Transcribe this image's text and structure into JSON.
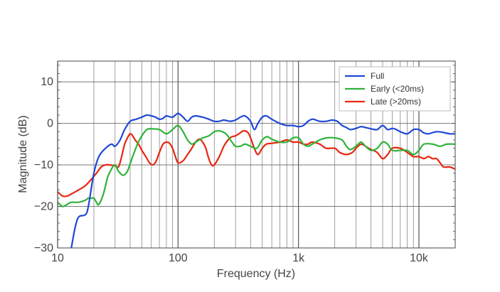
{
  "chart_data": {
    "type": "line",
    "title": "",
    "xlabel": "Frequency (Hz)",
    "ylabel": "Magnitude (dB)",
    "xscale": "log",
    "xlim": [
      10,
      20000
    ],
    "ylim": [
      -30,
      15
    ],
    "x_ticks": [
      10,
      100,
      1000,
      10000
    ],
    "x_tick_labels": [
      "10",
      "100",
      "1k",
      "10k"
    ],
    "y_ticks": [
      -30,
      -20,
      -10,
      0,
      10
    ],
    "y_tick_labels": [
      "−30",
      "−20",
      "−10",
      "0",
      "10"
    ],
    "grid": true,
    "legend_position": "top-right",
    "series": [
      {
        "name": "Full",
        "color": "#1f48d6",
        "points": [
          [
            13,
            -30
          ],
          [
            14,
            -25
          ],
          [
            15,
            -22.5
          ],
          [
            17,
            -22
          ],
          [
            18,
            -20
          ],
          [
            20,
            -12
          ],
          [
            22,
            -8
          ],
          [
            25,
            -6
          ],
          [
            28,
            -5
          ],
          [
            30,
            -5.5
          ],
          [
            33,
            -4
          ],
          [
            36,
            -1.5
          ],
          [
            40,
            0.5
          ],
          [
            45,
            1
          ],
          [
            50,
            1.5
          ],
          [
            55,
            2
          ],
          [
            60,
            1.8
          ],
          [
            65,
            1.5
          ],
          [
            70,
            1
          ],
          [
            75,
            1.2
          ],
          [
            80,
            1.8
          ],
          [
            90,
            1.5
          ],
          [
            100,
            2.4
          ],
          [
            110,
            1.5
          ],
          [
            120,
            0.5
          ],
          [
            130,
            1.5
          ],
          [
            140,
            1.8
          ],
          [
            160,
            1.5
          ],
          [
            180,
            1
          ],
          [
            200,
            0.5
          ],
          [
            220,
            0.5
          ],
          [
            240,
            0.8
          ],
          [
            270,
            0.5
          ],
          [
            300,
            0.8
          ],
          [
            330,
            1.5
          ],
          [
            360,
            1.8
          ],
          [
            400,
            0.5
          ],
          [
            430,
            -1.5
          ],
          [
            460,
            0
          ],
          [
            500,
            1.5
          ],
          [
            540,
            1.8
          ],
          [
            600,
            1
          ],
          [
            700,
            0
          ],
          [
            800,
            -0.5
          ],
          [
            900,
            -0.5
          ],
          [
            1000,
            -0.8
          ],
          [
            1100,
            -0.5
          ],
          [
            1200,
            0.5
          ],
          [
            1300,
            1
          ],
          [
            1400,
            0.8
          ],
          [
            1500,
            0.5
          ],
          [
            1700,
            0.5
          ],
          [
            1900,
            0.8
          ],
          [
            2100,
            0.5
          ],
          [
            2300,
            -0.5
          ],
          [
            2500,
            -1
          ],
          [
            2700,
            -1.5
          ],
          [
            3000,
            -1.2
          ],
          [
            3300,
            -0.8
          ],
          [
            3600,
            -1
          ],
          [
            4000,
            -1.3
          ],
          [
            4500,
            -1.5
          ],
          [
            5000,
            -0.5
          ],
          [
            5500,
            -1.5
          ],
          [
            6000,
            -1.2
          ],
          [
            6500,
            -1.5
          ],
          [
            7000,
            -2
          ],
          [
            8000,
            -2.5
          ],
          [
            9000,
            -1.5
          ],
          [
            10000,
            -1.5
          ],
          [
            11000,
            -2.3
          ],
          [
            12000,
            -2.5
          ],
          [
            14000,
            -2
          ],
          [
            16000,
            -2.2
          ],
          [
            18000,
            -2.5
          ],
          [
            20000,
            -2.5
          ]
        ]
      },
      {
        "name": "Early (<20ms)",
        "color": "#2eb33a",
        "points": [
          [
            10,
            -19
          ],
          [
            11,
            -20
          ],
          [
            12,
            -19.5
          ],
          [
            13,
            -19
          ],
          [
            15,
            -19
          ],
          [
            17,
            -18.5
          ],
          [
            18,
            -18
          ],
          [
            19,
            -18
          ],
          [
            20,
            -18
          ],
          [
            21,
            -19
          ],
          [
            22,
            -19.5
          ],
          [
            24,
            -17
          ],
          [
            26,
            -13
          ],
          [
            28,
            -11
          ],
          [
            30,
            -10
          ],
          [
            32,
            -11.5
          ],
          [
            35,
            -12.5
          ],
          [
            38,
            -11.5
          ],
          [
            42,
            -8
          ],
          [
            46,
            -5
          ],
          [
            50,
            -3
          ],
          [
            55,
            -1.5
          ],
          [
            60,
            -1.3
          ],
          [
            70,
            -1.5
          ],
          [
            80,
            -2.5
          ],
          [
            90,
            -1.5
          ],
          [
            100,
            -0.5
          ],
          [
            110,
            -2
          ],
          [
            120,
            -4
          ],
          [
            130,
            -5
          ],
          [
            140,
            -4.5
          ],
          [
            160,
            -3.5
          ],
          [
            180,
            -3
          ],
          [
            200,
            -2
          ],
          [
            220,
            -1.8
          ],
          [
            250,
            -2.5
          ],
          [
            280,
            -4.5
          ],
          [
            300,
            -5.5
          ],
          [
            330,
            -5.5
          ],
          [
            360,
            -5
          ],
          [
            400,
            -5.5
          ],
          [
            450,
            -6
          ],
          [
            500,
            -4
          ],
          [
            550,
            -3.2
          ],
          [
            600,
            -3.8
          ],
          [
            700,
            -4.5
          ],
          [
            800,
            -4.5
          ],
          [
            900,
            -3.5
          ],
          [
            1000,
            -3.5
          ],
          [
            1100,
            -5
          ],
          [
            1200,
            -5.5
          ],
          [
            1300,
            -5
          ],
          [
            1500,
            -4
          ],
          [
            1700,
            -3.5
          ],
          [
            2000,
            -3.5
          ],
          [
            2300,
            -4
          ],
          [
            2500,
            -5.5
          ],
          [
            2700,
            -6.3
          ],
          [
            3000,
            -5.5
          ],
          [
            3300,
            -4.5
          ],
          [
            3600,
            -5.5
          ],
          [
            4000,
            -6.5
          ],
          [
            4500,
            -6
          ],
          [
            5000,
            -4.5
          ],
          [
            5500,
            -5
          ],
          [
            6000,
            -6.5
          ],
          [
            7000,
            -6.5
          ],
          [
            8000,
            -6.5
          ],
          [
            9000,
            -7.5
          ],
          [
            10000,
            -6.5
          ],
          [
            11000,
            -5
          ],
          [
            13000,
            -5
          ],
          [
            15000,
            -5.5
          ],
          [
            17000,
            -5
          ],
          [
            20000,
            -5
          ]
        ]
      },
      {
        "name": "Late (>20ms)",
        "color": "#e8260f",
        "points": [
          [
            10,
            -16.5
          ],
          [
            11,
            -17.5
          ],
          [
            12,
            -17.5
          ],
          [
            13,
            -17
          ],
          [
            15,
            -16
          ],
          [
            17,
            -15
          ],
          [
            19,
            -13.5
          ],
          [
            21,
            -12
          ],
          [
            23,
            -10.5
          ],
          [
            25,
            -10
          ],
          [
            27,
            -10
          ],
          [
            30,
            -10.2
          ],
          [
            32,
            -10.5
          ],
          [
            34,
            -8
          ],
          [
            36,
            -5
          ],
          [
            38,
            -3.5
          ],
          [
            40,
            -2.5
          ],
          [
            42,
            -3
          ],
          [
            44,
            -4
          ],
          [
            47,
            -5
          ],
          [
            50,
            -6.5
          ],
          [
            54,
            -8
          ],
          [
            58,
            -9.5
          ],
          [
            62,
            -10
          ],
          [
            66,
            -9
          ],
          [
            70,
            -7
          ],
          [
            75,
            -5
          ],
          [
            80,
            -4.5
          ],
          [
            85,
            -4.8
          ],
          [
            90,
            -6
          ],
          [
            95,
            -8
          ],
          [
            100,
            -9.5
          ],
          [
            110,
            -9
          ],
          [
            120,
            -7.5
          ],
          [
            130,
            -6
          ],
          [
            140,
            -4.5
          ],
          [
            150,
            -3.8
          ],
          [
            160,
            -4.5
          ],
          [
            170,
            -6
          ],
          [
            180,
            -8.5
          ],
          [
            190,
            -10
          ],
          [
            200,
            -10
          ],
          [
            220,
            -8
          ],
          [
            240,
            -5.5
          ],
          [
            260,
            -4
          ],
          [
            280,
            -3.2
          ],
          [
            300,
            -3
          ],
          [
            320,
            -2.5
          ],
          [
            350,
            -1.8
          ],
          [
            380,
            -2.2
          ],
          [
            400,
            -3.5
          ],
          [
            430,
            -6
          ],
          [
            460,
            -7.5
          ],
          [
            500,
            -6
          ],
          [
            540,
            -5
          ],
          [
            600,
            -4.8
          ],
          [
            700,
            -4.5
          ],
          [
            800,
            -4
          ],
          [
            900,
            -4.5
          ],
          [
            1000,
            -4.5
          ],
          [
            1100,
            -5
          ],
          [
            1200,
            -5
          ],
          [
            1300,
            -4.5
          ],
          [
            1500,
            -5
          ],
          [
            1700,
            -6
          ],
          [
            2000,
            -6
          ],
          [
            2200,
            -7
          ],
          [
            2500,
            -7.5
          ],
          [
            2800,
            -7
          ],
          [
            3000,
            -6
          ],
          [
            3300,
            -5
          ],
          [
            3600,
            -5.5
          ],
          [
            4000,
            -6.3
          ],
          [
            4500,
            -7
          ],
          [
            5000,
            -8.5
          ],
          [
            5500,
            -7.5
          ],
          [
            6000,
            -6
          ],
          [
            7000,
            -6
          ],
          [
            8000,
            -7
          ],
          [
            9000,
            -8
          ],
          [
            10000,
            -8
          ],
          [
            11000,
            -8.5
          ],
          [
            12000,
            -8
          ],
          [
            13000,
            -8.5
          ],
          [
            14000,
            -8.5
          ],
          [
            15000,
            -9.5
          ],
          [
            16000,
            -10.5
          ],
          [
            18000,
            -10.5
          ],
          [
            20000,
            -11
          ]
        ]
      }
    ]
  }
}
